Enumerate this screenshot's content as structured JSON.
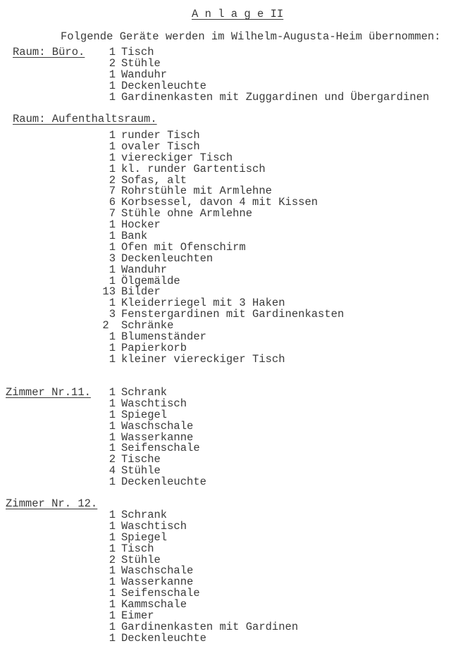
{
  "title": "A n l a g e II",
  "intro": "Folgende Geräte werden im Wilhelm-Augusta-Heim übernommen:",
  "sections": [
    {
      "heading": "Raum: Büro.",
      "items": [
        {
          "qty": "1",
          "name": "Tisch"
        },
        {
          "qty": "2",
          "name": "Stühle"
        },
        {
          "qty": "1",
          "name": "Wanduhr"
        },
        {
          "qty": "1",
          "name": "Deckenleuchte"
        },
        {
          "qty": "1",
          "name": "Gardinenkasten mit Zuggardinen und Übergardinen"
        }
      ]
    },
    {
      "heading": "Raum: Aufenthaltsraum.",
      "items": [
        {
          "qty": "1",
          "name": "runder Tisch"
        },
        {
          "qty": "1",
          "name": "ovaler Tisch"
        },
        {
          "qty": "1",
          "name": "viereckiger Tisch"
        },
        {
          "qty": "1",
          "name": "kl. runder Gartentisch"
        },
        {
          "qty": "2",
          "name": "Sofas, alt"
        },
        {
          "qty": "7",
          "name": "Rohrstühle mit Armlehne"
        },
        {
          "qty": "6",
          "name": "Korbsessel, davon 4 mit Kissen"
        },
        {
          "qty": "7",
          "name": "Stühle ohne Armlehne"
        },
        {
          "qty": "1",
          "name": "Hocker"
        },
        {
          "qty": "1",
          "name": "Bank"
        },
        {
          "qty": "1",
          "name": "Ofen mit Ofenschirm"
        },
        {
          "qty": "3",
          "name": "Deckenleuchten"
        },
        {
          "qty": "1",
          "name": "Wanduhr"
        },
        {
          "qty": "1",
          "name": "Ölgemälde"
        },
        {
          "qty": "13",
          "name": "Bilder"
        },
        {
          "qty": "1",
          "name": "Kleiderriegel mit 3 Haken"
        },
        {
          "qty": "3",
          "name": "Fenstergardinen mit Gardinenkasten"
        },
        {
          "qty": "2 ",
          "name": "Schränke"
        },
        {
          "qty": "1",
          "name": "Blumenständer"
        },
        {
          "qty": "1",
          "name": "Papierkorb"
        },
        {
          "qty": "1",
          "name": "kleiner viereckiger Tisch"
        }
      ]
    },
    {
      "heading": "Zimmer Nr.11.",
      "items": [
        {
          "qty": "1",
          "name": "Schrank"
        },
        {
          "qty": "1",
          "name": "Waschtisch"
        },
        {
          "qty": "1",
          "name": "Spiegel"
        },
        {
          "qty": "1",
          "name": "Waschschale"
        },
        {
          "qty": "1",
          "name": "Wasserkanne"
        },
        {
          "qty": "1",
          "name": "Seifenschale"
        },
        {
          "qty": "2",
          "name": "Tische"
        },
        {
          "qty": "4",
          "name": "Stühle"
        },
        {
          "qty": "1",
          "name": "Deckenleuchte"
        }
      ]
    },
    {
      "heading": "Zimmer Nr. 12.",
      "items": [
        {
          "qty": "1",
          "name": "Schrank"
        },
        {
          "qty": "1",
          "name": "Waschtisch"
        },
        {
          "qty": "1",
          "name": "Spiegel"
        },
        {
          "qty": "1",
          "name": "Tisch"
        },
        {
          "qty": "2",
          "name": "Stühle"
        },
        {
          "qty": "1",
          "name": "Waschschale"
        },
        {
          "qty": "1",
          "name": "Wasserkanne"
        },
        {
          "qty": "1",
          "name": "Seifenschale"
        },
        {
          "qty": "1",
          "name": "Kammschale"
        },
        {
          "qty": "1",
          "name": "Eimer"
        },
        {
          "qty": "1",
          "name": "Gardinenkasten mit Gardinen"
        },
        {
          "qty": "1",
          "name": "Deckenleuchte"
        }
      ]
    }
  ]
}
